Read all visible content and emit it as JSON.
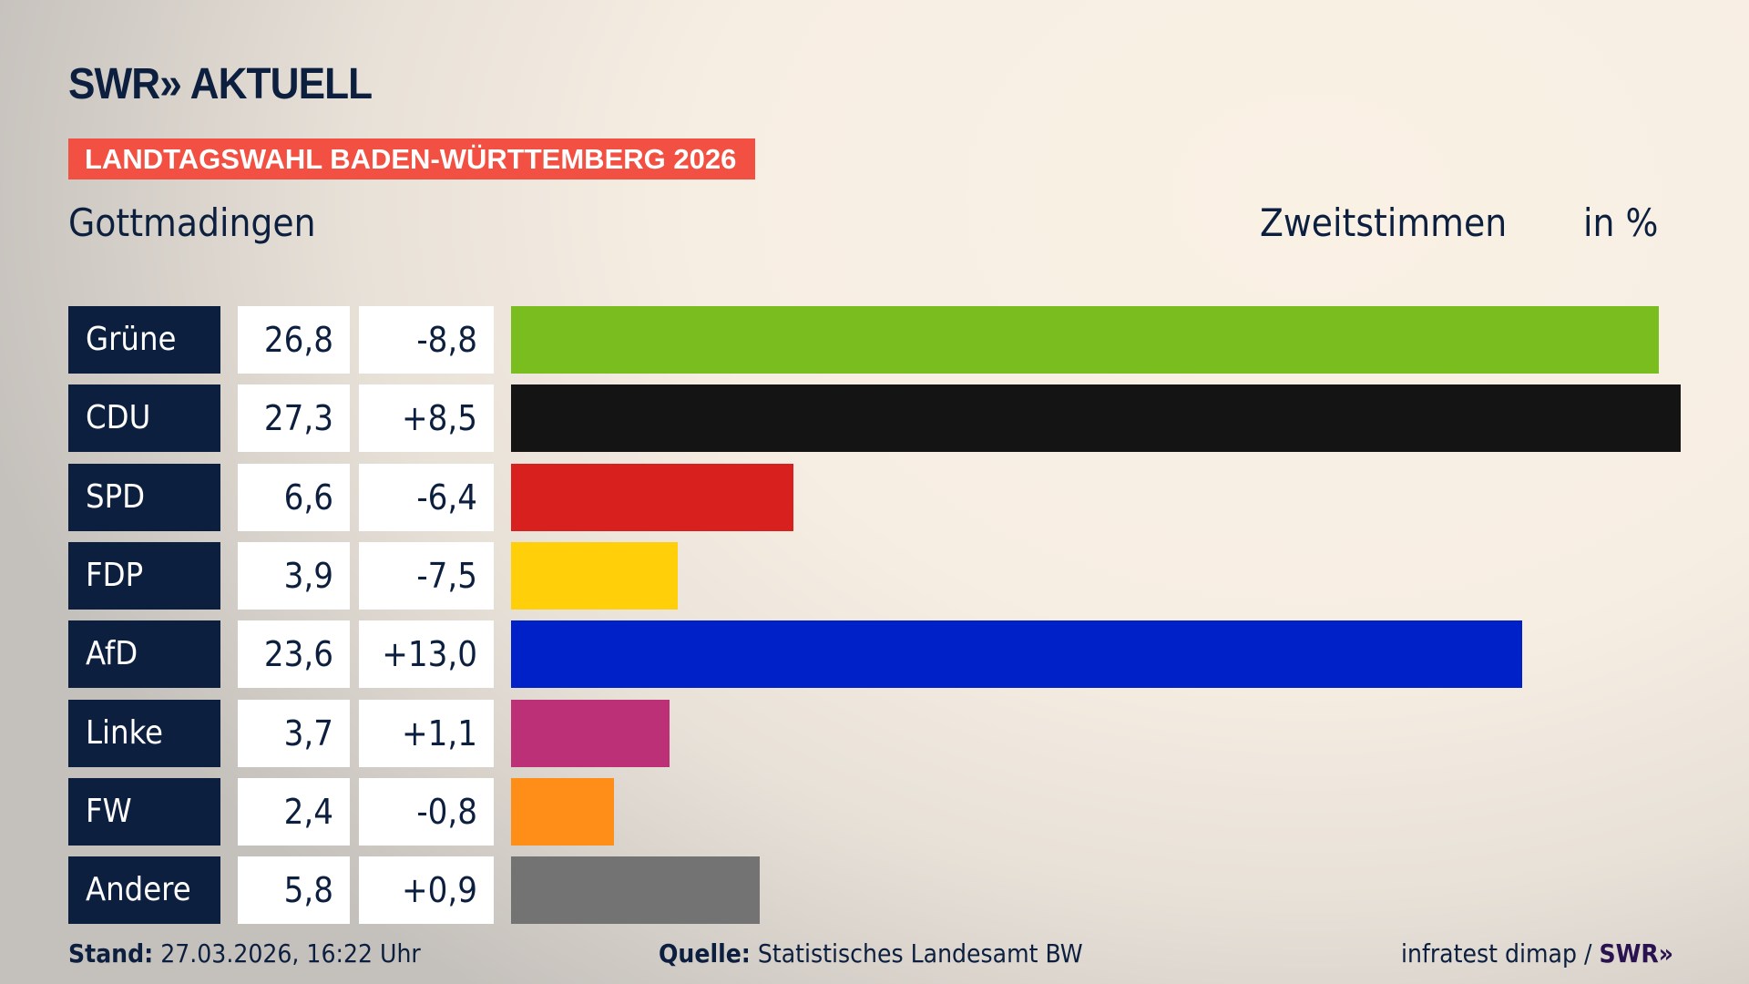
{
  "header": {
    "logo": "SWR» AKTUELL",
    "badge": "LANDTAGSWAHL BADEN-WÜRTTEMBERG 2026",
    "place": "Gottmadingen",
    "vote_type": "Zweitstimmen",
    "unit": "in %"
  },
  "chart_data": {
    "type": "bar",
    "orientation": "horizontal",
    "categories": [
      "Grüne",
      "CDU",
      "SPD",
      "FDP",
      "AfD",
      "Linke",
      "FW",
      "Andere"
    ],
    "values": [
      26.8,
      27.3,
      6.6,
      3.9,
      23.6,
      3.7,
      2.4,
      5.8
    ],
    "value_labels": [
      "26,8",
      "27,3",
      "6,6",
      "3,9",
      "23,6",
      "3,7",
      "2,4",
      "5,8"
    ],
    "diff_labels": [
      "-8,8",
      "+8,5",
      "-6,4",
      "-7,5",
      "+13,0",
      "+1,1",
      "-0,8",
      "+0,9"
    ],
    "colors": [
      "#7abd1f",
      "#141414",
      "#d8201f",
      "#ffcf0a",
      "#0021c8",
      "#bc3077",
      "#ff8e19",
      "#737373"
    ],
    "xlim": [
      0,
      27.3
    ]
  },
  "footer": {
    "stand_label": "Stand:",
    "stand_value": "27.03.2026, 16:22 Uhr",
    "source_label": "Quelle:",
    "source_value": "Statistisches Landesamt BW",
    "credit": "infratest dimap /",
    "credit_logo": "SWR»"
  }
}
